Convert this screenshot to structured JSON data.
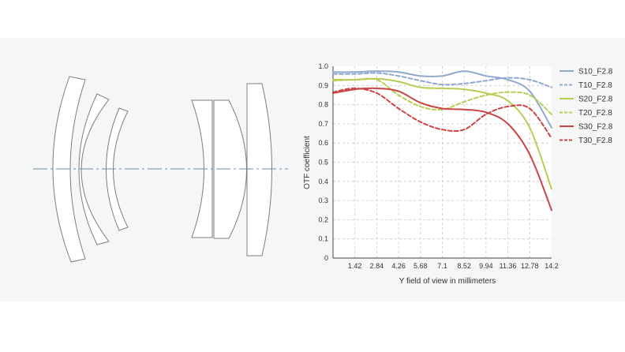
{
  "chart_data": {
    "type": "line",
    "xlabel": "Y field of view in millimeters",
    "ylabel": "OTF coefficient",
    "xlim": [
      0,
      14.2
    ],
    "ylim": [
      0,
      1.0
    ],
    "xticks": [
      "1.42",
      "2.84",
      "4.26",
      "5.68",
      "7.1",
      "8.52",
      "9.94",
      "11.36",
      "12.78",
      "14.2"
    ],
    "yticks": [
      "0",
      "0.1",
      "0.2",
      "0.3",
      "0.4",
      "0.5",
      "0.6",
      "0.7",
      "0.8",
      "0.9",
      "1.0"
    ],
    "grid": true,
    "legend_position": "right",
    "x": [
      0,
      1.42,
      2.84,
      4.26,
      5.68,
      7.1,
      8.52,
      9.94,
      11.36,
      12.78,
      14.2
    ],
    "series": [
      {
        "name": "S10_F2.8",
        "color": "#8fa9cf",
        "dash": false,
        "values": [
          0.97,
          0.97,
          0.975,
          0.97,
          0.95,
          0.95,
          0.975,
          0.95,
          0.93,
          0.87,
          0.68
        ]
      },
      {
        "name": "T10_F2.8",
        "color": "#8fa9cf",
        "dash": true,
        "values": [
          0.96,
          0.96,
          0.965,
          0.95,
          0.925,
          0.905,
          0.91,
          0.925,
          0.94,
          0.93,
          0.89
        ]
      },
      {
        "name": "S20_F2.8",
        "color": "#b5cf55",
        "dash": false,
        "values": [
          0.93,
          0.93,
          0.935,
          0.92,
          0.89,
          0.885,
          0.88,
          0.86,
          0.82,
          0.68,
          0.36
        ]
      },
      {
        "name": "T20_F2.8",
        "color": "#b5cf55",
        "dash": true,
        "values": [
          0.925,
          0.93,
          0.93,
          0.85,
          0.79,
          0.775,
          0.815,
          0.85,
          0.865,
          0.85,
          0.75
        ]
      },
      {
        "name": "S30_F2.8",
        "color": "#cc4444",
        "dash": false,
        "values": [
          0.86,
          0.88,
          0.885,
          0.87,
          0.81,
          0.78,
          0.775,
          0.76,
          0.7,
          0.54,
          0.25
        ]
      },
      {
        "name": "T30_F2.8",
        "color": "#cc4444",
        "dash": true,
        "values": [
          0.865,
          0.885,
          0.86,
          0.78,
          0.71,
          0.67,
          0.67,
          0.75,
          0.79,
          0.78,
          0.625
        ]
      }
    ]
  },
  "diagram": {
    "lens_fill": "#ffffff",
    "lens_stroke": "#7a7f84",
    "axis_stroke": "#6a8bb0"
  }
}
